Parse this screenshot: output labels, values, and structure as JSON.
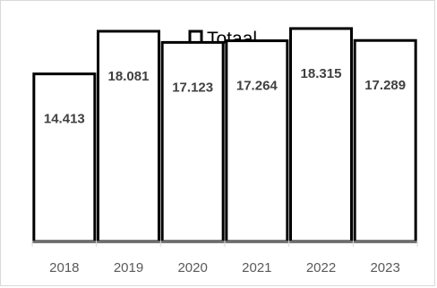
{
  "chart_data": {
    "type": "bar",
    "categories": [
      "2018",
      "2019",
      "2020",
      "2021",
      "2022",
      "2023"
    ],
    "series": [
      {
        "name": "Totaal",
        "values": [
          14413,
          18081,
          17123,
          17264,
          18315,
          17289
        ],
        "value_labels": [
          "14.413",
          "18.081",
          "17.123",
          "17.264",
          "18.315",
          "17.289"
        ]
      }
    ],
    "legend_position": "top-center",
    "grid": false,
    "ylim": [
      0,
      20000
    ],
    "bar_fill": "#ffffff",
    "bar_stroke": "#000000",
    "axis_color": "#d9d9d9"
  }
}
